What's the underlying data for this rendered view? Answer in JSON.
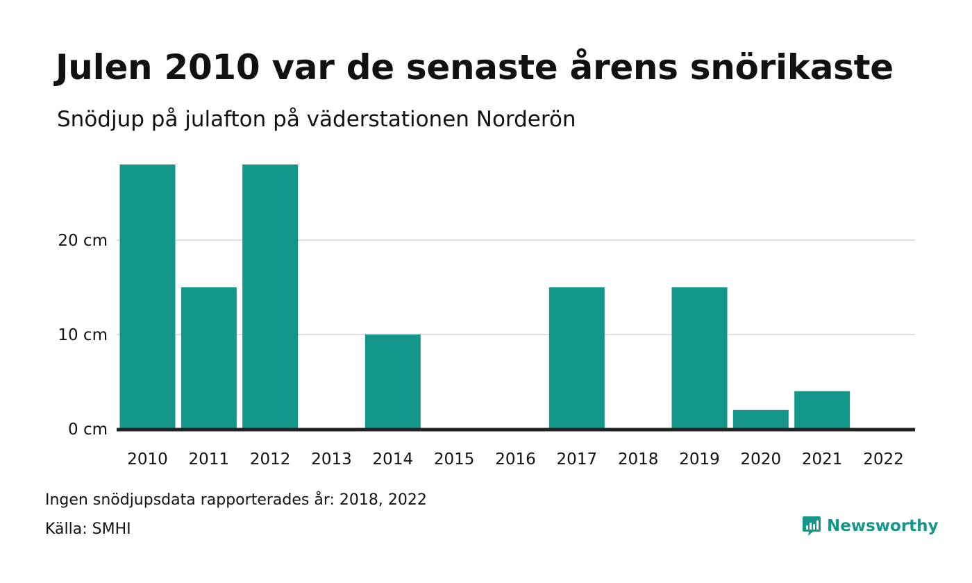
{
  "colors": {
    "bar": "#14968a",
    "grid": "#dddddd",
    "baseline": "#222222",
    "brand": "#14968a"
  },
  "brand": {
    "name": "Newsworthy",
    "icon": "newsworthy-logo-icon"
  },
  "footer": {
    "note": "Ingen snödjupsdata rapporterades år: 2018, 2022",
    "source": "Källa: SMHI"
  },
  "chart_data": {
    "type": "bar",
    "title": "Julen 2010 var de senaste årens snörikaste",
    "subtitle": "Snödjup på julafton på väderstationen Norderön",
    "xlabel": "",
    "ylabel": "",
    "categories": [
      "2010",
      "2011",
      "2012",
      "2013",
      "2014",
      "2015",
      "2016",
      "2017",
      "2018",
      "2019",
      "2020",
      "2021",
      "2022"
    ],
    "values": [
      28,
      15,
      28,
      0,
      10,
      0,
      0,
      15,
      null,
      15,
      2,
      4,
      null
    ],
    "ylim": [
      0,
      28
    ],
    "yticks": [
      0,
      10,
      20
    ],
    "ytick_labels": [
      "0 cm",
      "10 cm",
      "20 cm"
    ],
    "grid": true,
    "legend": "none"
  }
}
